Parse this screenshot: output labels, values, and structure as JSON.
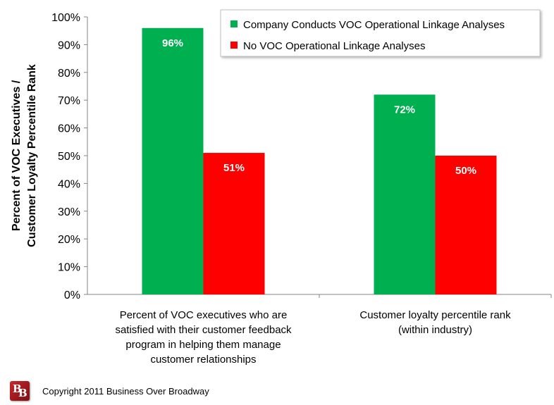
{
  "chart_data": {
    "type": "bar",
    "ylabel_line1": "Percent of VOC Executives /",
    "ylabel_line2": "Customer Loyalty Percentile Rank",
    "ylim": [
      0,
      100
    ],
    "yticks": [
      "0%",
      "10%",
      "20%",
      "30%",
      "40%",
      "50%",
      "60%",
      "70%",
      "80%",
      "90%",
      "100%"
    ],
    "grid": false,
    "legend_position": "top-right",
    "categories": [
      [
        "Percent of VOC executives who are",
        "satisfied with their customer feedback",
        "program in helping them manage",
        "customer relationships"
      ],
      [
        "Customer loyalty percentile rank",
        "(within industry)"
      ]
    ],
    "series": [
      {
        "name": "Company Conducts VOC Operational Linkage Analyses",
        "values": [
          96,
          72
        ],
        "labels": [
          "96%",
          "72%"
        ],
        "color": "#00b050"
      },
      {
        "name": "No VOC Operational Linkage Analyses",
        "values": [
          51,
          50
        ],
        "labels": [
          "51%",
          "50%"
        ],
        "color": "#ff0000"
      }
    ]
  },
  "footer": {
    "logo_text": "BB",
    "copyright": "Copyright 2011 Business Over Broadway"
  }
}
